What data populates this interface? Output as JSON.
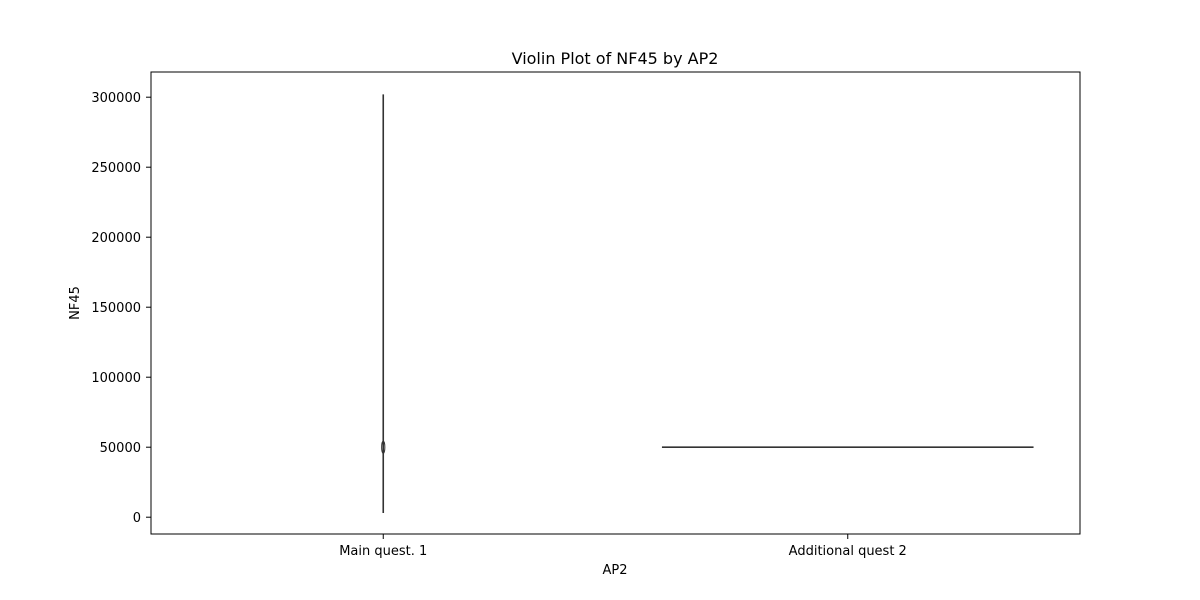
{
  "chart_data": {
    "type": "violin",
    "title": "Violin Plot of NF45 by AP2",
    "xlabel": "AP2",
    "ylabel": "NF45",
    "categories": [
      "Main quest. 1",
      "Additional quest 2"
    ],
    "ylim": [
      -12000,
      318000
    ],
    "yticks": [
      0,
      50000,
      100000,
      150000,
      200000,
      250000,
      300000
    ],
    "ytick_labels": [
      "0",
      "50000",
      "100000",
      "150000",
      "200000",
      "250000",
      "300000"
    ],
    "groups": [
      {
        "category": "Main quest. 1",
        "min": 3000,
        "max": 302000,
        "median": 50000
      },
      {
        "category": "Additional quest 2",
        "min": 50000,
        "max": 50000,
        "median": 50000
      }
    ],
    "line_color": "#333333",
    "grid": false,
    "legend": "none"
  }
}
